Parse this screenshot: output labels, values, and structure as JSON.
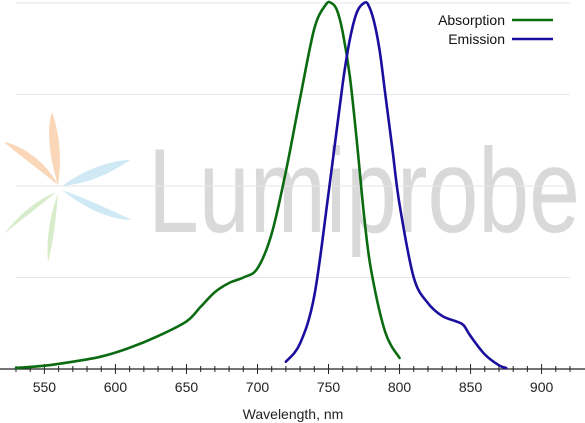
{
  "watermark": {
    "text": "Lumiprobe",
    "colors": {
      "text": "#d9d9d9",
      "petal_orange": "#f9d7b8",
      "petal_blue": "#cfe9f5",
      "petal_green": "#d7ecc9"
    }
  },
  "chart_data": {
    "type": "line",
    "title": "",
    "xlabel": "Wavelength, nm",
    "ylabel": "",
    "xlim": [
      530,
      920
    ],
    "ylim": [
      0,
      1.0
    ],
    "x_ticks": [
      550,
      600,
      650,
      700,
      750,
      800,
      850,
      900
    ],
    "x_tick_labels": [
      "550",
      "600",
      "650",
      "700",
      "750",
      "800",
      "850",
      "900"
    ],
    "grid": {
      "horizontal": true,
      "vertical": false
    },
    "legend_position": "top-right",
    "series": [
      {
        "name": "Absorption",
        "color": "#0a6b10",
        "x": [
          530,
          550,
          570,
          590,
          610,
          630,
          650,
          660,
          670,
          680,
          690,
          700,
          710,
          720,
          730,
          740,
          748,
          752,
          756,
          760,
          765,
          770,
          775,
          780,
          790,
          800
        ],
        "y": [
          0.003,
          0.009,
          0.02,
          0.034,
          0.058,
          0.09,
          0.13,
          0.17,
          0.21,
          0.235,
          0.25,
          0.275,
          0.37,
          0.54,
          0.74,
          0.93,
          0.995,
          1.0,
          0.98,
          0.92,
          0.8,
          0.62,
          0.42,
          0.27,
          0.1,
          0.03
        ]
      },
      {
        "name": "Emission",
        "color": "#1a0e9e",
        "x": [
          720,
          730,
          740,
          750,
          760,
          765,
          770,
          775,
          778,
          782,
          786,
          790,
          795,
          800,
          810,
          820,
          830,
          840,
          845,
          850,
          860,
          870,
          875
        ],
        "y": [
          0.02,
          0.07,
          0.2,
          0.48,
          0.78,
          0.9,
          0.975,
          1.0,
          0.995,
          0.95,
          0.87,
          0.75,
          0.6,
          0.45,
          0.25,
          0.18,
          0.145,
          0.13,
          0.12,
          0.09,
          0.04,
          0.01,
          0.003
        ]
      }
    ]
  }
}
